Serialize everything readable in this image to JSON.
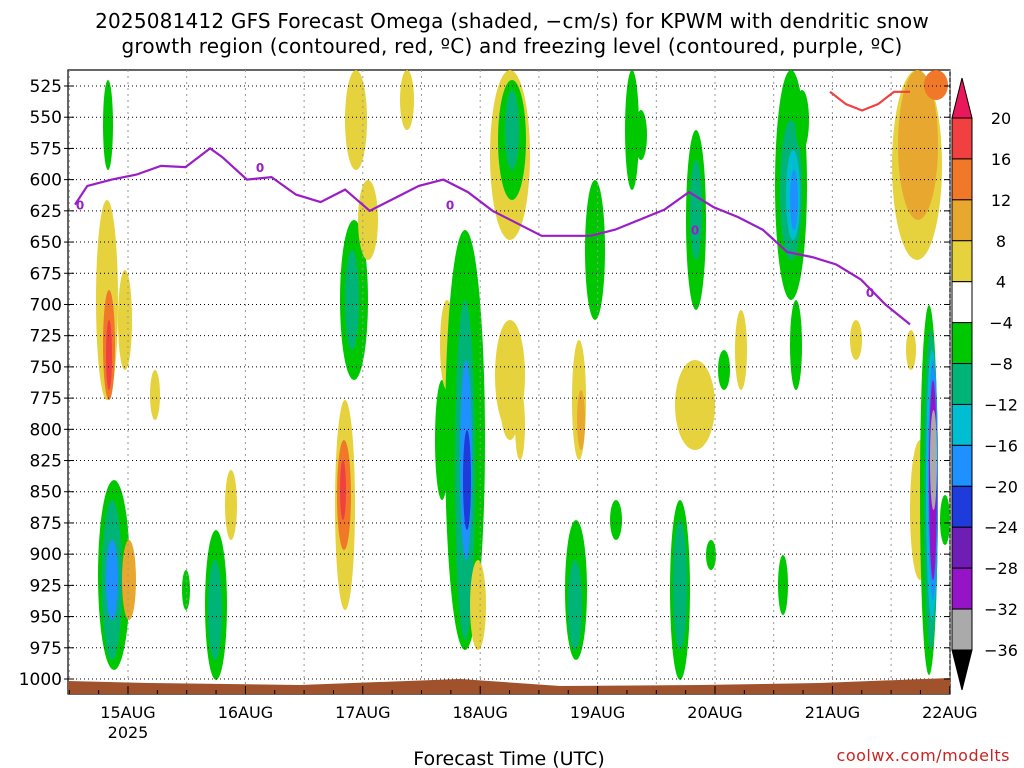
{
  "title_line1": "2025081412 GFS Forecast Omega (shaded, −cm/s) for KPWM with dendritic snow",
  "title_line2": "growth region (contoured, red, ºC) and freezing level (contoured, purple, ºC)",
  "watermark": "coolwx.com/modelts",
  "chart_data": {
    "type": "heatmap",
    "title": "2025081412 GFS Forecast Omega (shaded, −cm/s) for KPWM with dendritic snow growth region (contoured, red, ºC) and freezing level (contoured, purple, ºC)",
    "xlabel": "Forecast Time (UTC)",
    "ylabel": "",
    "x_ticks": [
      "15AUG",
      "16AUG",
      "17AUG",
      "18AUG",
      "19AUG",
      "20AUG",
      "21AUG",
      "22AUG"
    ],
    "x_year_label": "2025",
    "y_ticks": [
      525,
      550,
      575,
      600,
      625,
      650,
      675,
      700,
      725,
      750,
      775,
      800,
      825,
      850,
      875,
      900,
      925,
      950,
      975,
      1000
    ],
    "y_axis": "pressure (hPa), inverted",
    "colorbar_labels": [
      "20",
      "16",
      "12",
      "8",
      "4",
      "−4",
      "−8",
      "−12",
      "−16",
      "−20",
      "−24",
      "−28",
      "−32",
      "−36"
    ],
    "colorbar_colors": [
      "#e8185a",
      "#f04040",
      "#f07828",
      "#e8a830",
      "#e6d23c",
      "#ffffff",
      "#00c800",
      "#00b478",
      "#00bed2",
      "#1e90ff",
      "#1e3cdc",
      "#6e1eb4",
      "#9614c8",
      "#aaaaaa",
      "#000000"
    ],
    "freezing_level_label": "0",
    "freezing_level": {
      "x_days": [
        0.0,
        0.1,
        0.3,
        0.5,
        0.7,
        0.9,
        1.1,
        1.2,
        1.4,
        1.6,
        1.8,
        2.0,
        2.2,
        2.4,
        2.6,
        2.8,
        3.0,
        3.2,
        3.4,
        3.6,
        3.8,
        4.0,
        4.2,
        4.4,
        4.6,
        4.8,
        5.0,
        5.2,
        5.4,
        5.6,
        5.8,
        6.0,
        6.2,
        6.4,
        6.6,
        6.8
      ],
      "pressure_hpa": [
        620,
        605,
        600,
        596,
        589,
        590,
        575,
        582,
        600,
        598,
        612,
        618,
        608,
        625,
        615,
        605,
        600,
        610,
        625,
        635,
        645,
        645,
        645,
        640,
        632,
        624,
        610,
        622,
        630,
        640,
        658,
        662,
        668,
        680,
        700,
        716
      ]
    },
    "dendritic_contour_x_days": [
      6.5,
      6.6,
      6.7,
      6.8,
      6.9,
      7.0
    ],
    "dendritic_contour_pressure_hpa": [
      520,
      530,
      535,
      530,
      520,
      520
    ]
  }
}
